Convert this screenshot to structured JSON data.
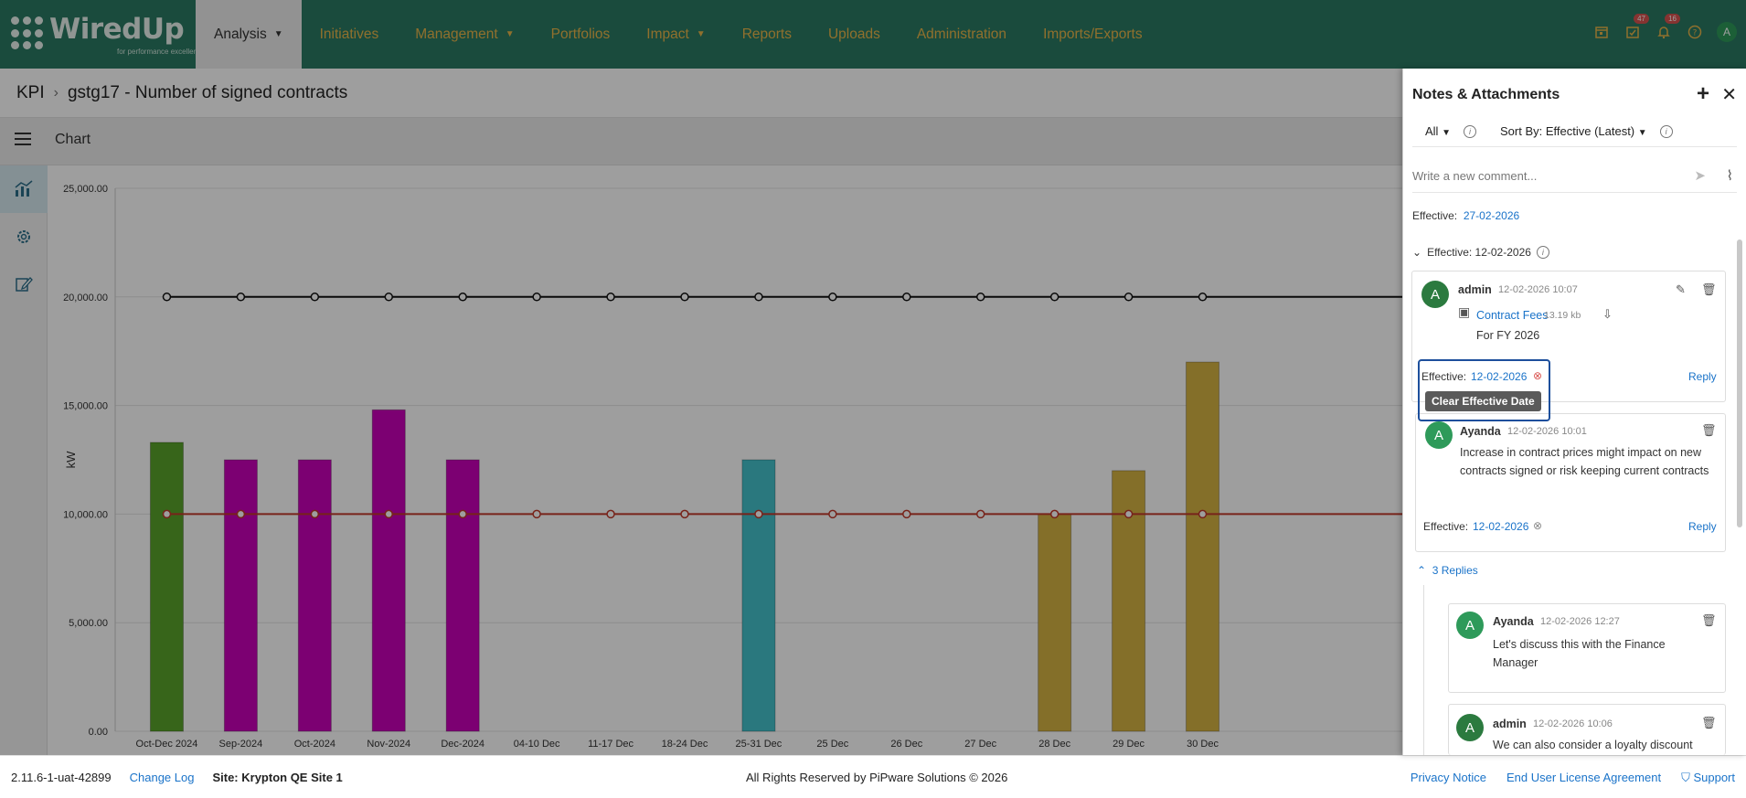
{
  "app": {
    "logo_text": "WiredUp",
    "logo_tagline": "for performance excellence"
  },
  "nav": {
    "items": [
      {
        "label": "Analysis",
        "dropdown": true,
        "active": true
      },
      {
        "label": "Initiatives",
        "dropdown": false
      },
      {
        "label": "Management",
        "dropdown": true
      },
      {
        "label": "Portfolios",
        "dropdown": false
      },
      {
        "label": "Impact",
        "dropdown": true
      },
      {
        "label": "Reports",
        "dropdown": false
      },
      {
        "label": "Uploads",
        "dropdown": false
      },
      {
        "label": "Administration",
        "dropdown": false
      },
      {
        "label": "Imports/Exports",
        "dropdown": false
      }
    ],
    "caret": "▼",
    "tasks_badge": "47",
    "notifications_badge": "16",
    "avatar_initial": "A"
  },
  "breadcrumb": {
    "root": "KPI",
    "separator": "›",
    "current": "gstg17 - Number of signed contracts"
  },
  "toolbar": {
    "title": "Chart"
  },
  "chart_data": {
    "type": "bar",
    "ylabel": "kW",
    "ylim": [
      0,
      25000
    ],
    "yticks": [
      "0.00",
      "5,000.00",
      "10,000.00",
      "15,000.00",
      "20,000.00",
      "25,000.00"
    ],
    "categories": [
      "Oct-Dec 2024",
      "Sep-2024",
      "Oct-2024",
      "Nov-2024",
      "Dec-2024",
      "04-10 Dec",
      "11-17 Dec",
      "18-24 Dec",
      "25-31 Dec",
      "25 Dec",
      "26 Dec",
      "27 Dec",
      "28 Dec",
      "29 Dec",
      "30 Dec"
    ],
    "bars": [
      13300,
      12500,
      12500,
      14800,
      12500,
      null,
      null,
      null,
      12500,
      null,
      null,
      null,
      10000,
      12000,
      17000
    ],
    "bar_colors": [
      "#5aa32a",
      "#c800b8",
      "#c800b8",
      "#c800b8",
      "#c800b8",
      null,
      null,
      null,
      "#45c2cc",
      null,
      null,
      null,
      "#d6b343",
      "#d6b343",
      "#d6b343"
    ],
    "series": [
      {
        "values": [
          20000,
          20000,
          20000,
          20000,
          20000,
          20000,
          20000,
          20000,
          20000,
          20000,
          20000,
          20000,
          20000,
          20000,
          20000
        ],
        "color": "#111111"
      },
      {
        "values": [
          10000,
          10000,
          10000,
          10000,
          10000,
          10000,
          10000,
          10000,
          10000,
          10000,
          10000,
          10000,
          10000,
          10000,
          10000
        ],
        "color": "#c0392b"
      }
    ],
    "grid": true
  },
  "panel": {
    "title": "Notes & Attachments",
    "add_icon": "+",
    "close_icon": "✕",
    "filter_value": "All",
    "sort_value": "Sort By: Effective (Latest)",
    "comment_placeholder": "Write a new comment...",
    "effective_label": "Effective:",
    "top_effective_date": "27-02-2026",
    "group_header": "Effective: 12-02-2026",
    "reply_label": "Reply",
    "tooltip": "Clear Effective Date",
    "replies_toggle": "3 Replies",
    "notes": [
      {
        "author": "admin",
        "time": "12-02-2026 10:07",
        "attachment_name": "Contract Fees",
        "attachment_size": "13.19 kb",
        "text": "For FY 2026",
        "effective_date": "12-02-2026"
      },
      {
        "author": "Ayanda",
        "time": "12-02-2026 10:01",
        "text": "Increase in contract prices might impact on new contracts signed or risk keeping current contracts",
        "effective_date": "12-02-2026"
      }
    ],
    "replies": [
      {
        "author": "Ayanda",
        "time": "12-02-2026 12:27",
        "text": "Let's discuss this with the Finance Manager"
      },
      {
        "author": "admin",
        "time": "12-02-2026 10:06",
        "text": "We can also consider a loyalty discount"
      }
    ],
    "avatar_initial": "A"
  },
  "footer": {
    "version": "2.11.6-1-uat-42899",
    "changelog": "Change Log",
    "site": "Site: Krypton QE Site 1",
    "copyright": "All Rights Reserved by PiPware Solutions © 2026",
    "privacy": "Privacy Notice",
    "eula": "End User License Agreement",
    "support": "Support"
  }
}
